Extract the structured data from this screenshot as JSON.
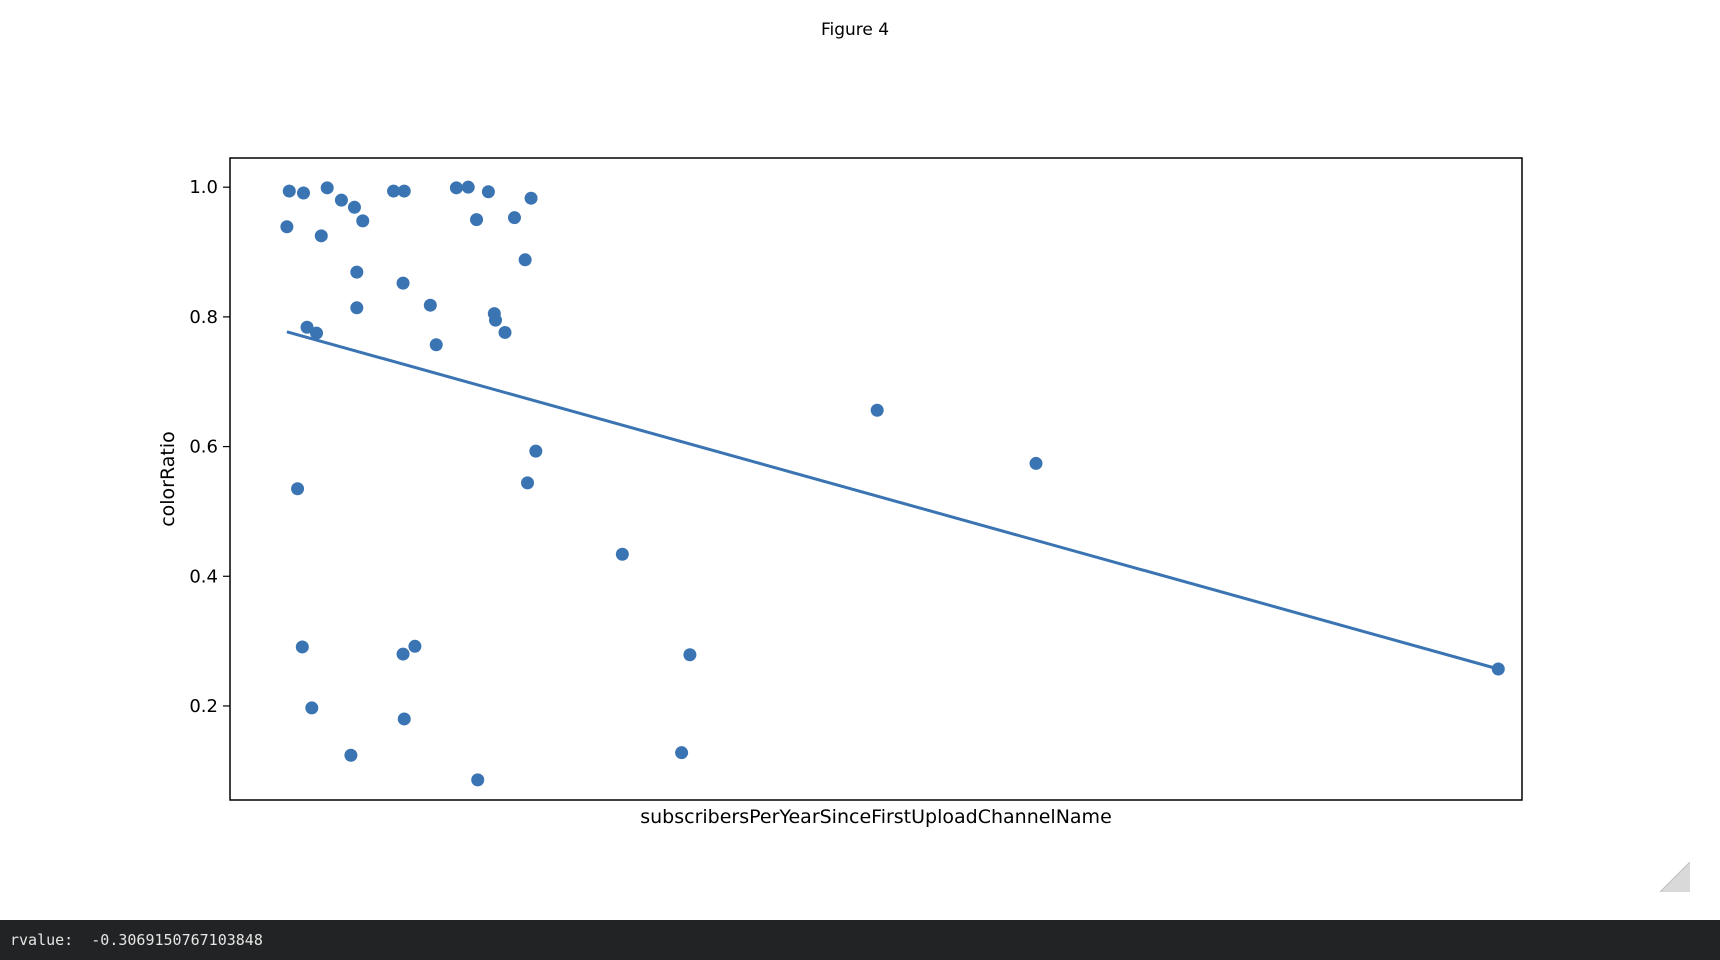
{
  "window": {
    "title": "Figure 4"
  },
  "console": {
    "label": "rvalue: ",
    "value": "-0.3069150767103848"
  },
  "colors": {
    "marker": "#3a74b2",
    "axes": "#000000",
    "console_bg": "#222324",
    "console_text": "#e6e6e6"
  },
  "chart_data": {
    "type": "scatter",
    "title": "",
    "xlabel": "subscribersPerYearSinceFirstUploadChannelName",
    "ylabel": "colorRatio",
    "x_ticks_visible": false,
    "xlim": [
      -5,
      1085
    ],
    "ylim": [
      0.055,
      1.045
    ],
    "yticks": [
      0.2,
      0.4,
      0.6,
      0.8,
      1.0
    ],
    "ytick_labels": [
      "0.2",
      "0.4",
      "0.6",
      "0.8",
      "1.0"
    ],
    "grid": false,
    "legend": "none",
    "points": [
      {
        "x": 45,
        "y": 0.994
      },
      {
        "x": 57,
        "y": 0.991
      },
      {
        "x": 77,
        "y": 0.999
      },
      {
        "x": 89,
        "y": 0.98
      },
      {
        "x": 100,
        "y": 0.969
      },
      {
        "x": 107,
        "y": 0.948
      },
      {
        "x": 43,
        "y": 0.939
      },
      {
        "x": 72,
        "y": 0.925
      },
      {
        "x": 133,
        "y": 0.994
      },
      {
        "x": 142,
        "y": 0.994
      },
      {
        "x": 186,
        "y": 0.999
      },
      {
        "x": 196,
        "y": 1.0
      },
      {
        "x": 203,
        "y": 0.95
      },
      {
        "x": 213,
        "y": 0.993
      },
      {
        "x": 235,
        "y": 0.953
      },
      {
        "x": 249,
        "y": 0.983
      },
      {
        "x": 244,
        "y": 0.888
      },
      {
        "x": 102,
        "y": 0.869
      },
      {
        "x": 141,
        "y": 0.852
      },
      {
        "x": 102,
        "y": 0.814
      },
      {
        "x": 164,
        "y": 0.818
      },
      {
        "x": 218,
        "y": 0.805
      },
      {
        "x": 219,
        "y": 0.795
      },
      {
        "x": 227,
        "y": 0.776
      },
      {
        "x": 60,
        "y": 0.784
      },
      {
        "x": 68,
        "y": 0.775
      },
      {
        "x": 169,
        "y": 0.757
      },
      {
        "x": 52,
        "y": 0.535
      },
      {
        "x": 253,
        "y": 0.593
      },
      {
        "x": 246,
        "y": 0.544
      },
      {
        "x": 326,
        "y": 0.434
      },
      {
        "x": 541,
        "y": 0.656
      },
      {
        "x": 675,
        "y": 0.574
      },
      {
        "x": 56,
        "y": 0.291
      },
      {
        "x": 141,
        "y": 0.28
      },
      {
        "x": 151,
        "y": 0.292
      },
      {
        "x": 383,
        "y": 0.279
      },
      {
        "x": 64,
        "y": 0.197
      },
      {
        "x": 142,
        "y": 0.18
      },
      {
        "x": 97,
        "y": 0.124
      },
      {
        "x": 376,
        "y": 0.128
      },
      {
        "x": 204,
        "y": 0.086
      },
      {
        "x": 1065,
        "y": 0.257
      }
    ],
    "trendline": {
      "type": "line",
      "x": [
        43,
        1065
      ],
      "y": [
        0.777,
        0.257
      ]
    }
  }
}
